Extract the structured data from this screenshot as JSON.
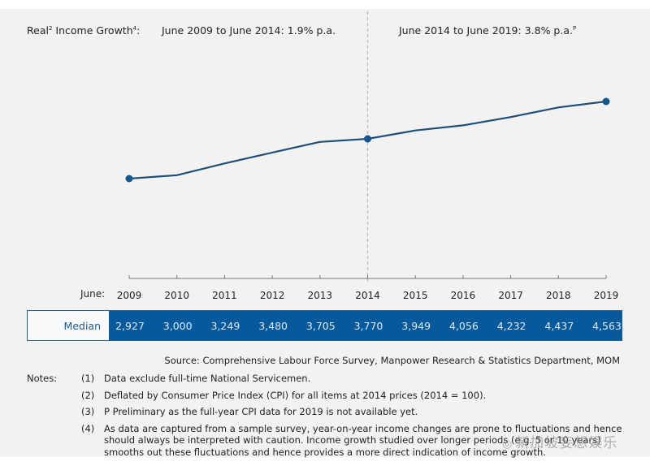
{
  "header": {
    "title_left": "Real",
    "title_left_sup": "2",
    "title_left_2": " Income Growth",
    "title_left_sup2": "4",
    "title_left_3": ":",
    "period_1": "June 2009 to June 2014: 1.9% p.a.",
    "period_2": "June 2014 to June 2019: 3.8% p.a.",
    "period_2_sup": "P"
  },
  "axis": {
    "x_prefix": "June:"
  },
  "table": {
    "row_label": "Median"
  },
  "chart_data": {
    "type": "line",
    "title": "Real Income Growth: June 2009 to June 2014: 1.9% p.a.; June 2014 to June 2019: 3.8% p.a.",
    "xlabel": "June",
    "ylabel": "",
    "categories": [
      "2009",
      "2010",
      "2011",
      "2012",
      "2013",
      "2014",
      "2015",
      "2016",
      "2017",
      "2018",
      "2019"
    ],
    "series": [
      {
        "name": "Median",
        "values": [
          2927,
          3000,
          3249,
          3480,
          3705,
          3770,
          3949,
          4056,
          4232,
          4437,
          4563
        ],
        "value_labels": [
          "2,927",
          "3,000",
          "3,249",
          "3,480",
          "3,705",
          "3,770",
          "3,949",
          "4,056",
          "4,232",
          "4,437",
          "4,563"
        ],
        "marked_points": [
          "2009",
          "2014",
          "2019"
        ],
        "color": "#1f4e79"
      }
    ],
    "ylim": [
      2000,
      5200
    ],
    "grid": false,
    "divider_at": "2014",
    "colors": {
      "line": "#1f4e79",
      "marker": "#14558c",
      "table_fill": "#065a9c",
      "divider": "#bdbdbd",
      "background": "#f2f2f2"
    }
  },
  "source": "Source: Comprehensive Labour Force Survey, Manpower Research & Statistics Department, MOM",
  "notes": {
    "label": "Notes:",
    "items": [
      {
        "num": "(1)",
        "lines": [
          "Data exclude full-time National Servicemen."
        ]
      },
      {
        "num": "(2)",
        "lines": [
          "Deflated by Consumer Price Index (CPI) for all items at 2014 prices (2014 = 100)."
        ]
      },
      {
        "num": "(3)",
        "lines": [
          "P Preliminary as the full-year CPI data for 2019 is not available yet."
        ]
      },
      {
        "num": "(4)",
        "lines": [
          "As data are captured from a sample survey, year-on-year income changes are prone to fluctuations and hence",
          "should always be interpreted with caution. Income growth studied over longer periods (e.g. 5 or 10 years)",
          "smooths out these fluctuations and hence provides a more direct indication of income growth."
        ]
      }
    ]
  },
  "watermark": {
    "icon": "wechat-icon",
    "text": "新加坡妄想娱乐"
  }
}
